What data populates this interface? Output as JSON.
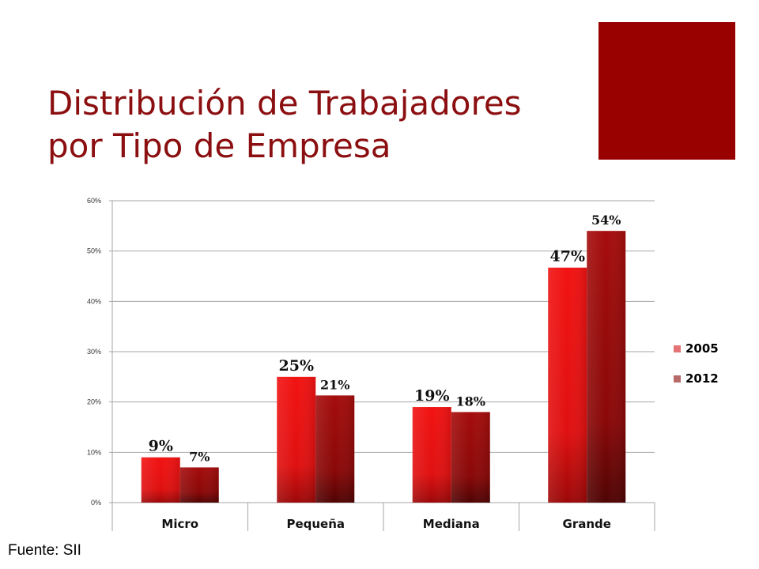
{
  "slide": {
    "title_line1": "Distribución de Trabajadores",
    "title_line2": "por Tipo de Empresa",
    "source": "Fuente: SII"
  },
  "colors": {
    "title": "#8b0e10",
    "accent": "#990000",
    "series_2005": "#ee1111",
    "series_2012": "#990a0a",
    "legend_2005": "#e57373",
    "legend_2012": "#b86a6a",
    "grid": "#a6a6a6"
  },
  "chart_data": {
    "type": "bar",
    "title": "",
    "xlabel": "",
    "ylabel": "",
    "ylim": [
      0,
      60
    ],
    "yticks": [
      "0%",
      "10%",
      "20%",
      "30%",
      "40%",
      "50%",
      "60%"
    ],
    "ytick_values": [
      0,
      10,
      20,
      30,
      40,
      50,
      60
    ],
    "categories": [
      "Micro",
      "Pequeña",
      "Mediana",
      "Grande"
    ],
    "series": [
      {
        "name": "2005",
        "values": [
          9,
          25,
          19,
          46.7
        ],
        "labels": [
          "9%",
          "25%",
          "19%",
          "47%"
        ]
      },
      {
        "name": "2012",
        "values": [
          7,
          21.3,
          18,
          54
        ],
        "labels": [
          "7%",
          "21%",
          "18%",
          "54%"
        ]
      }
    ],
    "legend_position": "right",
    "grid": true
  }
}
